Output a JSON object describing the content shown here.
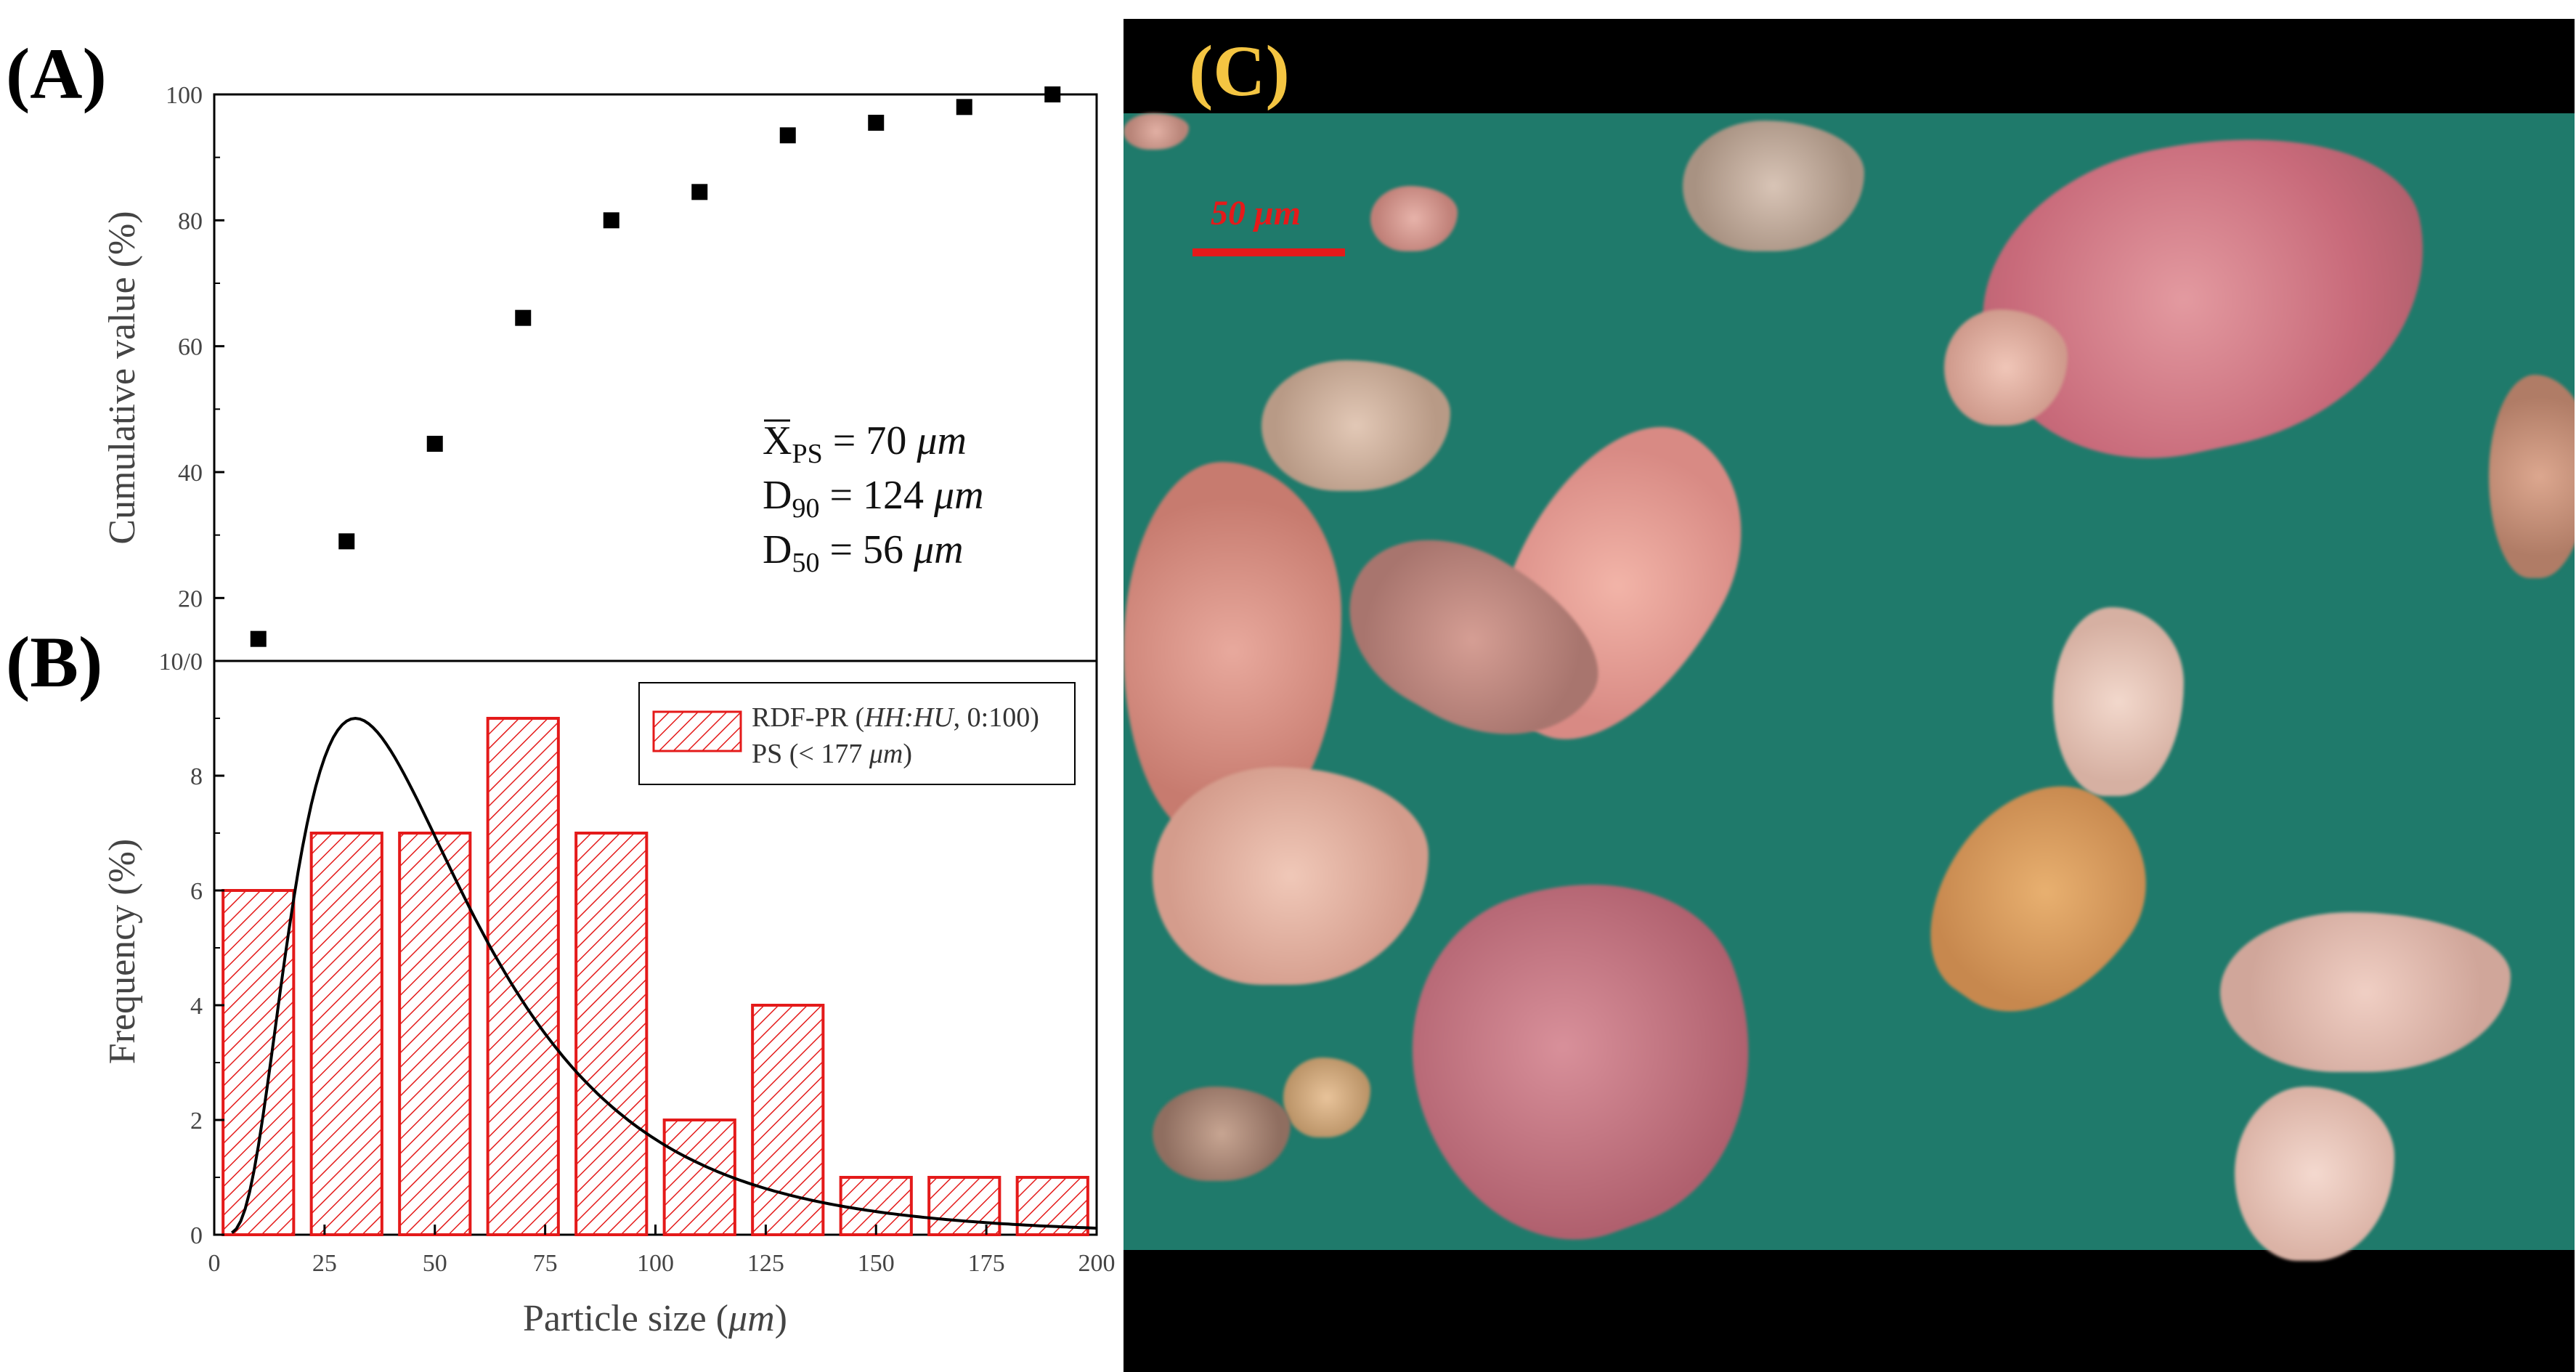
{
  "panel_labels": {
    "a": "(A)",
    "b": "(B)",
    "c": "(C)"
  },
  "chart_data": [
    {
      "type": "scatter",
      "panel": "(A)",
      "ylabel": "Cumulative value (%)",
      "ylim": [
        10,
        100
      ],
      "xlim": [
        0,
        200
      ],
      "yticks": [
        "100",
        "80",
        "60",
        "40",
        "20",
        "10/0"
      ],
      "series": [
        {
          "x": [
            10,
            30,
            50,
            70,
            90,
            110,
            130,
            150,
            170,
            190
          ],
          "y": [
            13.5,
            29,
            44.5,
            64.5,
            80,
            84.5,
            93.5,
            95.5,
            98,
            100
          ]
        }
      ],
      "annotations": [
        {
          "symbol": "X",
          "sub": "PS",
          "value": "= 70 ",
          "unit": "μm"
        },
        {
          "symbol": "D",
          "sub": "90",
          "value": "= 124 ",
          "unit": "μm"
        },
        {
          "symbol": "D",
          "sub": "50",
          "value": "= 56 ",
          "unit": "μm"
        }
      ],
      "marker_color": "#000000"
    },
    {
      "type": "bar",
      "panel": "(B)",
      "xlabel_main": "Particle size (",
      "xlabel_unit": "μm",
      "xlabel_end": ")",
      "ylabel": "Frequency (%)",
      "xlim": [
        0,
        200
      ],
      "ylim": [
        0,
        10
      ],
      "xticks": [
        "0",
        "25",
        "50",
        "75",
        "100",
        "125",
        "150",
        "175",
        "200"
      ],
      "yticks": [
        "0",
        "2",
        "4",
        "6",
        "8"
      ],
      "bin_centers": [
        10,
        30,
        50,
        70,
        90,
        110,
        130,
        150,
        170,
        190
      ],
      "values": [
        6,
        7,
        7,
        9,
        7,
        2,
        4,
        1,
        1,
        1
      ],
      "legend": {
        "line1_main": "RDF-PR (",
        "line1_italic": "HH:HU",
        "line1_end": ", 0:100)",
        "line2_main": "PS (< 177 ",
        "line2_italic": "μm",
        "line2_end": ")"
      },
      "fit_curve": {
        "peak_x": 32,
        "peak_y": 9
      },
      "bar_color": "#e41a1a"
    }
  ],
  "micrograph": {
    "scalebar": "50 μm",
    "background_color": "#1f7a6b"
  }
}
